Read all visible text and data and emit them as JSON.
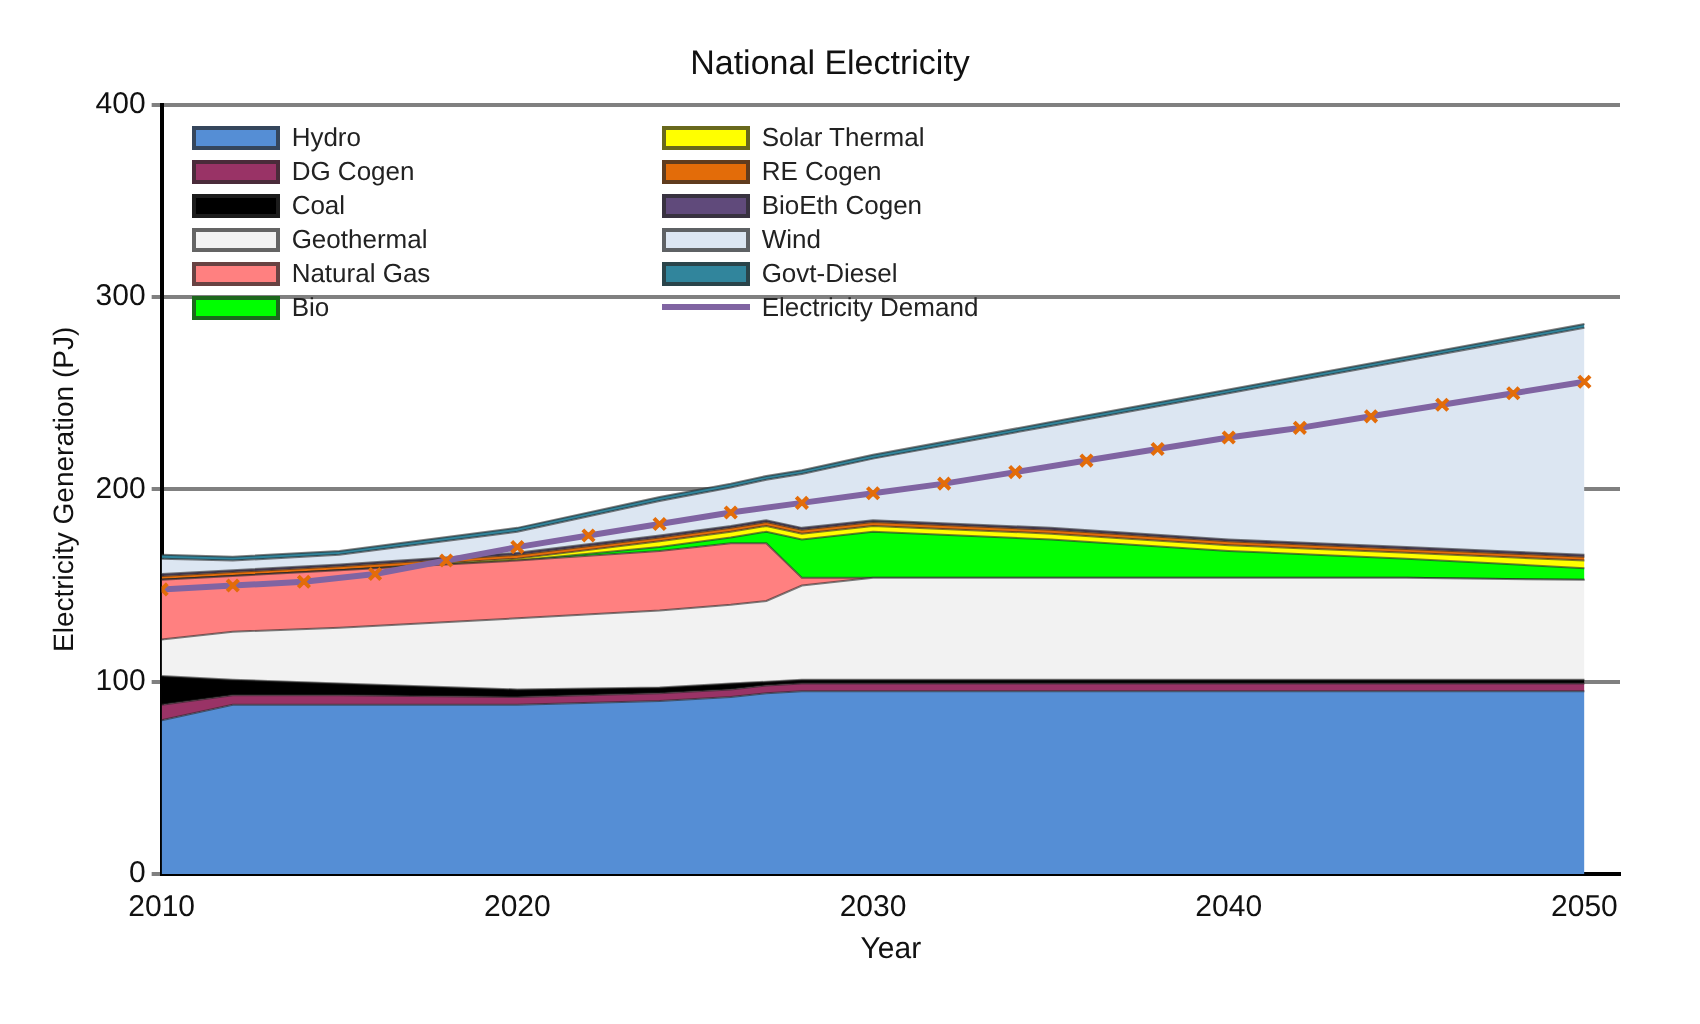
{
  "chart_data": {
    "type": "area",
    "title": "National Electricity",
    "xlabel": "Year",
    "ylabel": "Electricity Generation (PJ)",
    "x": [
      2010,
      2012,
      2015,
      2020,
      2024,
      2026,
      2027,
      2028,
      2030,
      2035,
      2040,
      2045,
      2050
    ],
    "stacked": true,
    "xlim": [
      2010,
      2051
    ],
    "xticks": [
      2010,
      2020,
      2030,
      2040,
      2050
    ],
    "ylim": [
      0,
      400
    ],
    "yticks": [
      0,
      100,
      200,
      300,
      400
    ],
    "grid": "y",
    "legend": "top left",
    "series": [
      {
        "name": "Hydro",
        "color": "#558ed5",
        "values": [
          80,
          88,
          88,
          88,
          90,
          92,
          94,
          95,
          95,
          95,
          95,
          95,
          95
        ]
      },
      {
        "name": "DG Cogen",
        "color": "#993366",
        "values": [
          8,
          5,
          5,
          4,
          4,
          4,
          4,
          4,
          4,
          4,
          4,
          4,
          4
        ]
      },
      {
        "name": "Coal",
        "color": "#000000",
        "values": [
          15,
          8,
          6,
          4,
          3,
          3,
          2,
          2,
          2,
          2,
          2,
          2,
          2
        ]
      },
      {
        "name": "Geothermal",
        "color": "#f2f2f2",
        "values": [
          19,
          25,
          29,
          37,
          40,
          41,
          42,
          49,
          53,
          53,
          53,
          53,
          52
        ]
      },
      {
        "name": "Natural Gas",
        "color": "#ff8080",
        "values": [
          31,
          29,
          30,
          30,
          31,
          32,
          30,
          4,
          0,
          0,
          0,
          0,
          0
        ]
      },
      {
        "name": "Bio",
        "color": "#00ff00",
        "values": [
          0,
          0,
          0,
          0,
          2,
          3,
          6,
          20,
          24,
          20,
          14,
          10,
          6
        ]
      },
      {
        "name": "Solar Thermal",
        "color": "#ffff00",
        "values": [
          0,
          0,
          0,
          1,
          3,
          3,
          3,
          3,
          3,
          3,
          3,
          3,
          4
        ]
      },
      {
        "name": "RE Cogen",
        "color": "#e36c09",
        "values": [
          2,
          2,
          2,
          2,
          2,
          2,
          2,
          2,
          2,
          2,
          2,
          2,
          2
        ]
      },
      {
        "name": "BioEth Cogen",
        "color": "#604a7b",
        "values": [
          1,
          1,
          1,
          1,
          1,
          1,
          1,
          1,
          1,
          1,
          1,
          1,
          1
        ]
      },
      {
        "name": "Wind",
        "color": "#dce6f2",
        "values": [
          8,
          5,
          5,
          11,
          18,
          20,
          21,
          28,
          32,
          53,
          76,
          97,
          118
        ]
      },
      {
        "name": "Govt-Diesel",
        "color": "#31859c",
        "values": [
          2,
          2,
          2,
          2,
          2,
          2,
          2,
          2,
          2,
          2,
          2,
          2,
          2
        ]
      },
      {
        "name": "Electricity Demand",
        "type": "line",
        "color": "#8064a2",
        "marker": "cross",
        "x": [
          2010,
          2012,
          2014,
          2016,
          2018,
          2020,
          2022,
          2024,
          2026,
          2028,
          2030,
          2032,
          2034,
          2036,
          2038,
          2040,
          2042,
          2044,
          2046,
          2048,
          2050
        ],
        "values": [
          148,
          150,
          152,
          156,
          163,
          170,
          176,
          182,
          188,
          193,
          198,
          203,
          209,
          215,
          221,
          227,
          232,
          238,
          244,
          250,
          256
        ]
      }
    ]
  }
}
